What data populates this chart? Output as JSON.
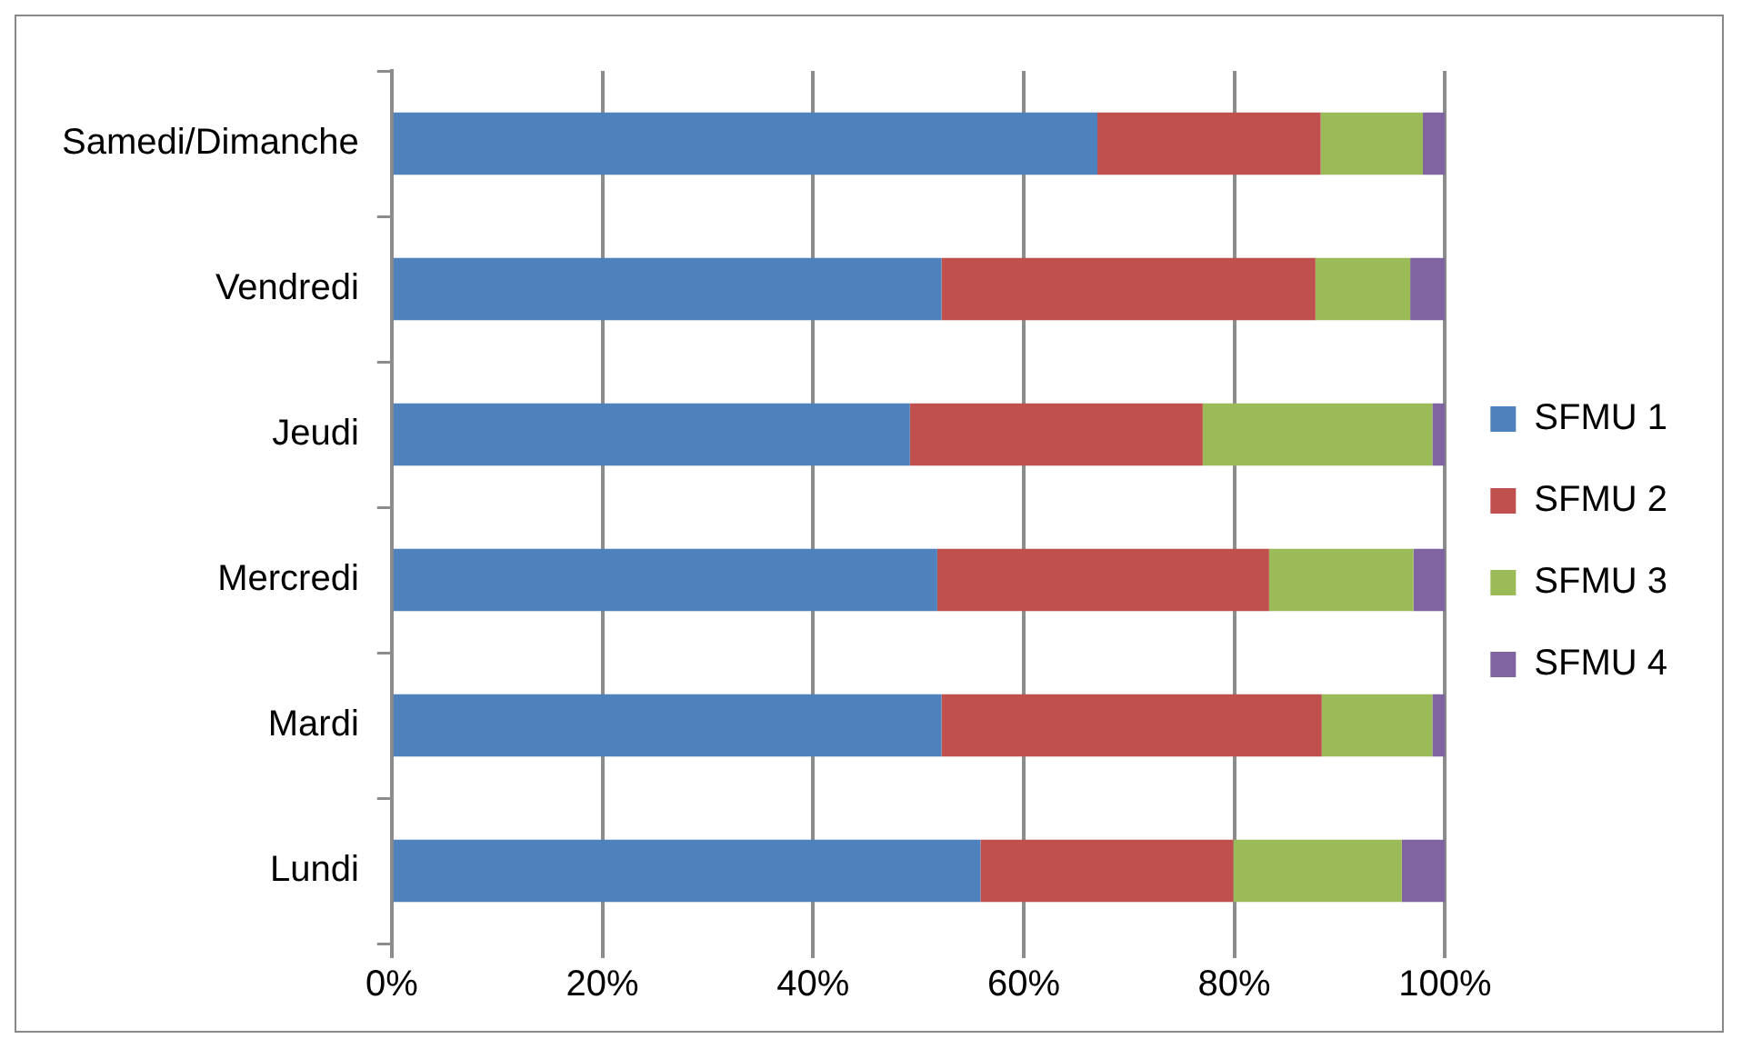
{
  "chart_data": {
    "type": "bar",
    "orientation": "horizontal",
    "stacked": true,
    "categories": [
      "Samedi/Dimanche",
      "Vendredi",
      "Jeudi",
      "Mercredi",
      "Mardi",
      "Lundi"
    ],
    "series": [
      {
        "name": "SFMU 1",
        "color": "#4f81bd",
        "values": [
          67.0,
          52.2,
          49.2,
          51.8,
          52.2,
          55.9
        ]
      },
      {
        "name": "SFMU 2",
        "color": "#c0504d",
        "values": [
          21.2,
          35.5,
          27.8,
          31.5,
          36.1,
          24.0
        ]
      },
      {
        "name": "SFMU 3",
        "color": "#9bbb59",
        "values": [
          9.7,
          9.0,
          21.8,
          13.7,
          10.5,
          16.0
        ]
      },
      {
        "name": "SFMU 4",
        "color": "#8064a2",
        "values": [
          2.1,
          3.3,
          1.2,
          3.0,
          1.2,
          4.1
        ]
      }
    ],
    "xlim": [
      0,
      100
    ],
    "xticks": [
      {
        "value": 0,
        "label": "0%"
      },
      {
        "value": 20,
        "label": "20%"
      },
      {
        "value": 40,
        "label": "40%"
      },
      {
        "value": 60,
        "label": "60%"
      },
      {
        "value": 80,
        "label": "80%"
      },
      {
        "value": 100,
        "label": "100%"
      }
    ],
    "grid": "x",
    "legend": "right"
  }
}
